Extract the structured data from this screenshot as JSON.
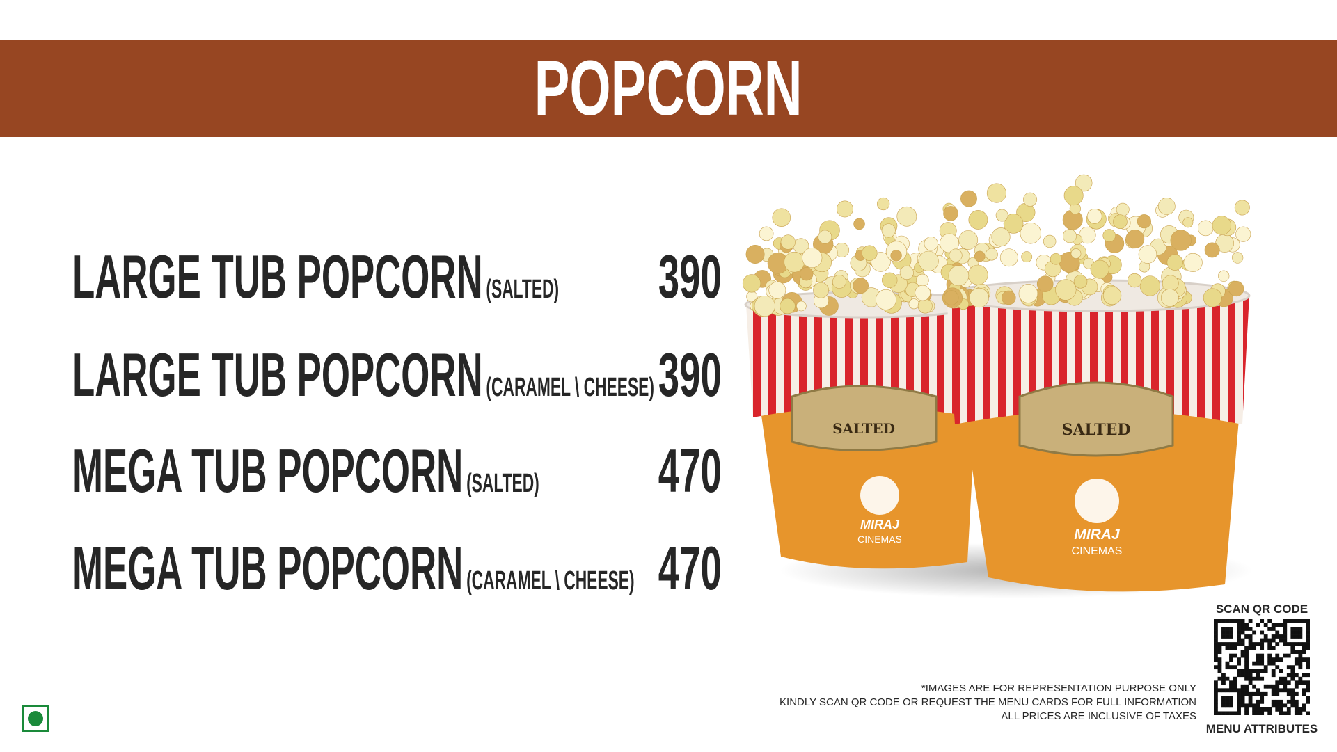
{
  "header": {
    "title": "POPCORN"
  },
  "items": [
    {
      "name": "LARGE TUB POPCORN",
      "variant": "(SALTED)",
      "price": "390"
    },
    {
      "name": "LARGE TUB POPCORN",
      "variant": "(CARAMEL \\ CHEESE)",
      "price": "390"
    },
    {
      "name": "MEGA TUB POPCORN",
      "variant": "(SALTED)",
      "price": "470"
    },
    {
      "name": "MEGA TUB POPCORN",
      "variant": "(CARAMEL \\ CHEESE)",
      "price": "470"
    }
  ],
  "image": {
    "label": "SALTED",
    "brand": "MIRAJ",
    "brand_sub": "CINEMAS"
  },
  "notes": [
    "*IMAGES ARE FOR REPRESENTATION PURPOSE ONLY",
    "KINDLY SCAN QR CODE OR REQUEST THE MENU CARDS FOR FULL INFORMATION",
    "ALL PRICES ARE INCLUSIVE OF TAXES"
  ],
  "qr": {
    "top": "SCAN QR CODE",
    "bottom": "MENU ATTRIBUTES"
  }
}
